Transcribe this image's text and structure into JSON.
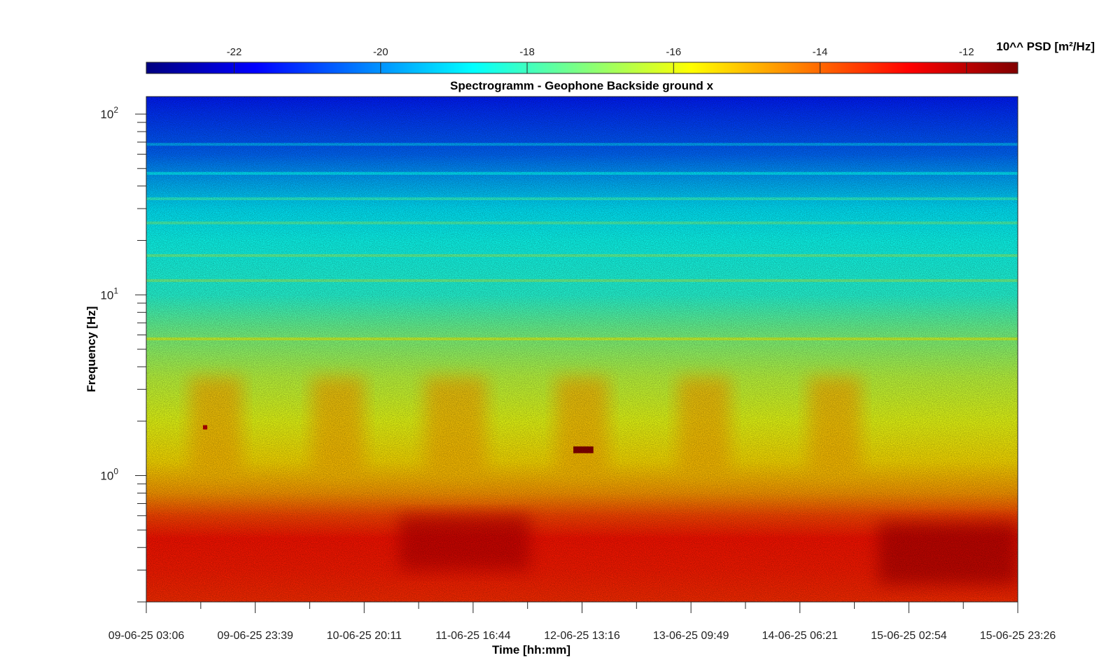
{
  "chart_data": {
    "type": "heatmap",
    "title": "Spectrogramm - Geophone Backside ground x",
    "xlabel": "Time [hh:mm]",
    "ylabel": "Frequency [Hz]",
    "y_scale": "log",
    "ylim": [
      0.2,
      125
    ],
    "y_ticks": [
      {
        "value": 1,
        "base": "10",
        "exp": "0"
      },
      {
        "value": 10,
        "base": "10",
        "exp": "1"
      },
      {
        "value": 100,
        "base": "10",
        "exp": "2"
      }
    ],
    "x_tick_labels": [
      "09-06-25 03:06",
      "09-06-25 23:39",
      "10-06-25 20:11",
      "11-06-25 16:44",
      "12-06-25 13:16",
      "13-06-25 09:49",
      "14-06-25 06:21",
      "15-06-25 02:54",
      "15-06-25 23:26"
    ],
    "x_minor_ticks_between_labels": 1,
    "colorbar": {
      "label": "10^^ PSD [m²/Hz]",
      "range": [
        -23.2,
        -11.3
      ],
      "ticks": [
        -22,
        -20,
        -18,
        -16,
        -14,
        -12
      ],
      "tick_labels": [
        "-22",
        "-20",
        "-18",
        "-16",
        "-14",
        "-12"
      ],
      "colormap": "jet",
      "colors": [
        "#00008f",
        "#0000ff",
        "#00ffff",
        "#ffff00",
        "#ff0000",
        "#800000"
      ]
    },
    "frequency_profile": [
      {
        "f": 125,
        "psd": -21.4
      },
      {
        "f": 100,
        "psd": -21.1
      },
      {
        "f": 60,
        "psd": -20.5
      },
      {
        "f": 45,
        "psd": -19.8
      },
      {
        "f": 30,
        "psd": -19.0
      },
      {
        "f": 20,
        "psd": -18.6
      },
      {
        "f": 10,
        "psd": -18.3
      },
      {
        "f": 6,
        "psd": -17.3
      },
      {
        "f": 3.5,
        "psd": -16.5
      },
      {
        "f": 2,
        "psd": -16.0
      },
      {
        "f": 1.2,
        "psd": -15.4
      },
      {
        "f": 0.8,
        "psd": -14.6
      },
      {
        "f": 0.6,
        "psd": -13.6
      },
      {
        "f": 0.45,
        "psd": -13.0
      },
      {
        "f": 0.3,
        "psd": -13.1
      },
      {
        "f": 0.2,
        "psd": -13.3
      }
    ],
    "spectral_lines_hz": [
      5.7,
      12,
      16.5,
      25,
      34,
      47,
      68
    ],
    "features": [
      {
        "kind": "low-frequency maximum",
        "t_start": 0.29,
        "t_end": 0.44,
        "f_min": 0.3,
        "f_max": 0.6,
        "psd": -12.1
      },
      {
        "kind": "low-frequency maximum",
        "t_start": 0.84,
        "t_end": 1.0,
        "f_min": 0.25,
        "f_max": 0.55,
        "psd": -11.9
      },
      {
        "kind": "day-activity band",
        "t_start": 0.05,
        "t_end": 0.11,
        "f_min": 1.0,
        "f_max": 3.5,
        "psd": -14.9
      },
      {
        "kind": "day-activity band",
        "t_start": 0.19,
        "t_end": 0.25,
        "f_min": 1.0,
        "f_max": 3.5,
        "psd": -14.9
      },
      {
        "kind": "day-activity band",
        "t_start": 0.32,
        "t_end": 0.39,
        "f_min": 1.0,
        "f_max": 3.5,
        "psd": -14.9
      },
      {
        "kind": "day-activity band",
        "t_start": 0.47,
        "t_end": 0.53,
        "f_min": 1.0,
        "f_max": 3.5,
        "psd": -14.9
      },
      {
        "kind": "day-activity band",
        "t_start": 0.61,
        "t_end": 0.67,
        "f_min": 1.0,
        "f_max": 3.5,
        "psd": -14.9
      },
      {
        "kind": "day-activity band",
        "t_start": 0.76,
        "t_end": 0.82,
        "f_min": 1.0,
        "f_max": 3.5,
        "psd": -14.9
      },
      {
        "kind": "narrowband event",
        "t_start": 0.49,
        "t_end": 0.513,
        "f_min": 1.33,
        "f_max": 1.45,
        "psd": -11.4
      },
      {
        "kind": "narrowband event",
        "t_start": 0.065,
        "t_end": 0.07,
        "f_min": 1.8,
        "f_max": 1.9,
        "psd": -12.0
      }
    ]
  }
}
